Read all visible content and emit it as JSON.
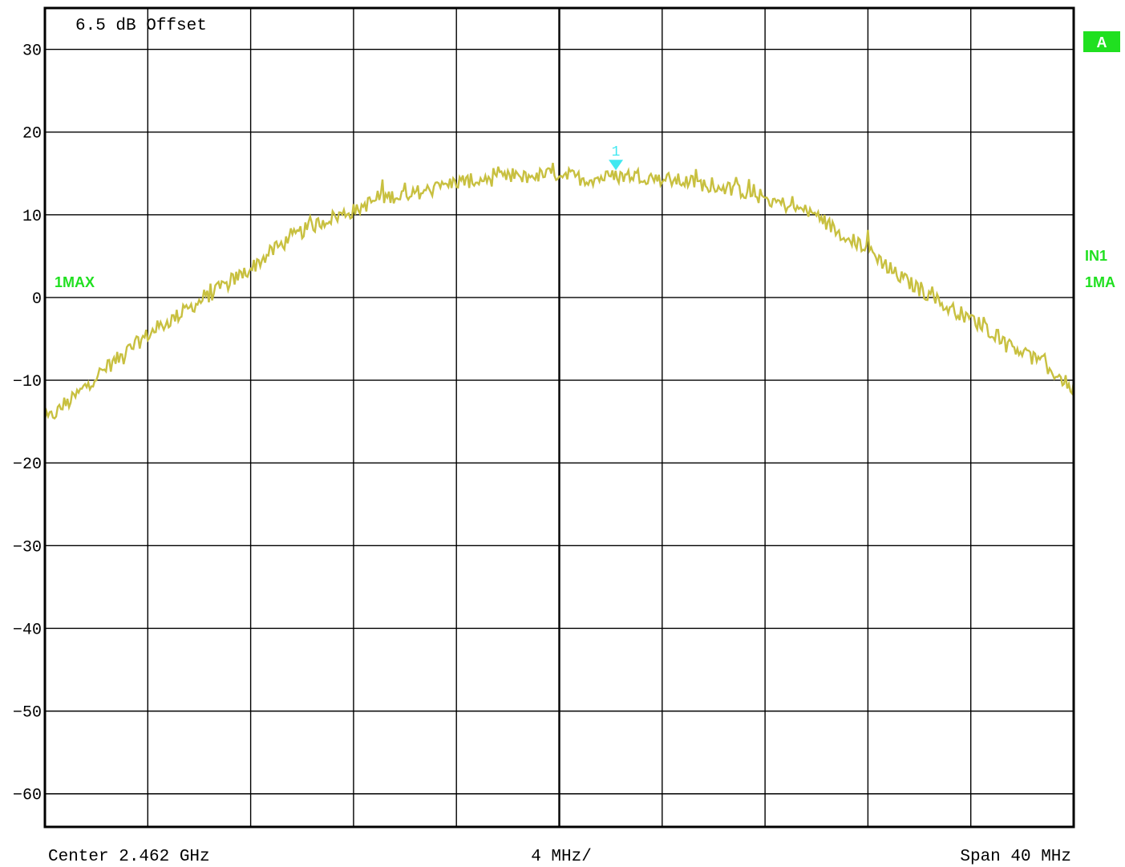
{
  "chart_data": {
    "type": "line",
    "title": "6.5 dB Offset",
    "xlabel": "",
    "ylabel": "",
    "x_unit": "MHz",
    "xlim": [
      2442,
      2482
    ],
    "ylim": [
      -64,
      35
    ],
    "x_ticks_count": 10,
    "y_ticks": [
      30,
      20,
      10,
      0,
      -10,
      -20,
      -30,
      -40,
      -50,
      -60
    ],
    "grid": true,
    "footer": {
      "left": "Center 2.462 GHz",
      "center": "4 MHz/",
      "right": "Span 40 MHz"
    },
    "trace_label_left": "1MAX",
    "side_labels": {
      "badge": "A",
      "in": "IN1",
      "ma": "1MA"
    },
    "colors": {
      "trace": "#c8c040",
      "marker": "#40e8f0",
      "label": "#20e020",
      "grid": "#000000"
    },
    "marker": {
      "label": "1",
      "x": 2464.2,
      "y": 15.2
    },
    "series": [
      {
        "name": "1MAX",
        "x": [
          2442,
          2443,
          2444,
          2445,
          2446,
          2447,
          2448,
          2449,
          2450,
          2451,
          2452,
          2453,
          2454,
          2455,
          2456,
          2457,
          2458,
          2459,
          2460,
          2461,
          2462,
          2463,
          2464,
          2465,
          2466,
          2467,
          2468,
          2469,
          2470,
          2471,
          2472,
          2473,
          2474,
          2475,
          2476,
          2477,
          2478,
          2479,
          2480,
          2481,
          2482
        ],
        "y": [
          -15,
          -12.5,
          -9.5,
          -7,
          -4.5,
          -2.5,
          -0.5,
          1.5,
          3.5,
          6,
          8,
          9.5,
          10.5,
          12,
          12.5,
          13,
          14,
          14.2,
          14.5,
          14.7,
          15,
          14.3,
          14.6,
          14.8,
          14.3,
          14,
          13.5,
          13,
          12,
          11,
          10,
          7.5,
          6,
          3,
          1,
          -1,
          -2.5,
          -4.5,
          -6.5,
          -8.5,
          -11
        ]
      }
    ]
  }
}
